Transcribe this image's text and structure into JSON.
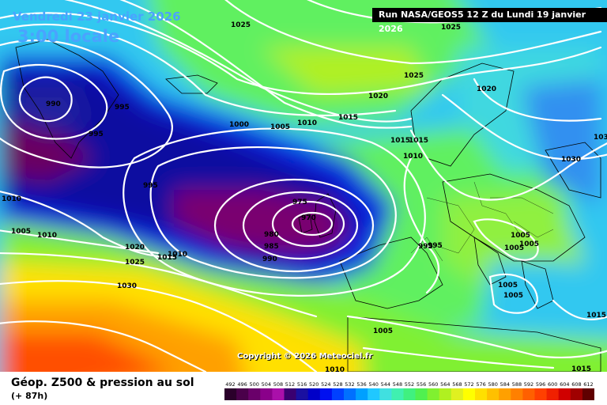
{
  "header": {
    "title": "Vendredi 23 janvier 2026",
    "time": "3:00 locale",
    "run": "Run NASA/GEOS5 12 Z du Lundi 19 janvier 2026"
  },
  "copyright": "Copyright © 2026 Meteociel.fr",
  "footer": {
    "title": "Géop. Z500 & pression au sol",
    "subtitle": "(+ 87h)"
  },
  "legend": {
    "values": [
      "492",
      "496",
      "500",
      "504",
      "508",
      "512",
      "516",
      "520",
      "524",
      "528",
      "532",
      "536",
      "540",
      "544",
      "548",
      "552",
      "556",
      "560",
      "564",
      "568",
      "572",
      "576",
      "580",
      "584",
      "588",
      "592",
      "596",
      "600",
      "604",
      "608",
      "612"
    ],
    "colors": [
      "#2a002a",
      "#4a004a",
      "#6a006a",
      "#8a008a",
      "#aa10aa",
      "#3a0070",
      "#1a10a0",
      "#0000c8",
      "#0010f0",
      "#0040ff",
      "#0070ff",
      "#00a0ff",
      "#20c8ff",
      "#40e0e0",
      "#40f0b0",
      "#40f080",
      "#50f050",
      "#80f030",
      "#b0f020",
      "#e0f020",
      "#ffff00",
      "#ffe000",
      "#ffc000",
      "#ffa000",
      "#ff8000",
      "#ff6000",
      "#ff4000",
      "#f02000",
      "#d00000",
      "#a00000",
      "#600000"
    ]
  },
  "isobars": [
    "1025",
    "1025",
    "1025",
    "1020",
    "1020",
    "990",
    "995",
    "995",
    "1000",
    "1005",
    "1010",
    "1015",
    "1015",
    "1015",
    "1010",
    "995",
    "1010",
    "1005",
    "1010",
    "1020",
    "1025",
    "1015",
    "1010",
    "1030",
    "975",
    "970",
    "980",
    "985",
    "990",
    "995",
    "995",
    "1005",
    "1005",
    "1005",
    "1005",
    "1005",
    "1030",
    "1030",
    "1015",
    "1015",
    "1005",
    "1010"
  ]
}
